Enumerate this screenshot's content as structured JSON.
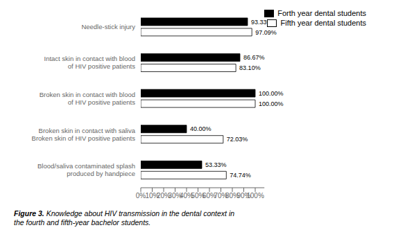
{
  "chart_data": {
    "type": "bar",
    "orientation": "horizontal",
    "categories": [
      "Blood/saliva contaminated splash\nproduced by handpiece",
      "Broken skin in contact with saliva\nBroken skin of HIV positive patients",
      "Broken skin in contact with blood\nof HIV positive patients",
      "Intact skin in contact with blood\nof HIV positive patients",
      "Needle-stick injury"
    ],
    "series": [
      {
        "name": "Forth year dental students",
        "color": "#000000",
        "values": [
          53.33,
          40.0,
          100.0,
          86.67,
          93.33
        ],
        "value_labels": [
          "53.33%",
          "40.00%",
          "100.00%",
          "86.67%",
          "93.33%"
        ]
      },
      {
        "name": "Fifth year dental students",
        "color": "#ffffff",
        "values": [
          74.74,
          72.03,
          100.0,
          83.1,
          97.09
        ],
        "value_labels": [
          "74.74%",
          "72.03%",
          "100.00%",
          "83.10%",
          "97.09%"
        ]
      }
    ],
    "xlim": [
      0,
      108
    ],
    "xticks": [
      {
        "value": 0,
        "label": "0%"
      },
      {
        "value": 10,
        "label": "10%"
      },
      {
        "value": 20,
        "label": "20%"
      },
      {
        "value": 30,
        "label": "30%"
      },
      {
        "value": 40,
        "label": "40%"
      },
      {
        "value": 50,
        "label": "50%"
      },
      {
        "value": 60,
        "label": "60%"
      },
      {
        "value": 70,
        "label": "70%"
      },
      {
        "value": 80,
        "label": "80%"
      },
      {
        "value": 90,
        "label": "90%"
      },
      {
        "value": 100,
        "label": "100%"
      }
    ],
    "data_labels": true,
    "legend": "upper right",
    "annotations": [
      "Figure 3.",
      "Knowledge about HIV transmission in the dental context in\nthe fourth and fifth-year bachelor students."
    ]
  }
}
